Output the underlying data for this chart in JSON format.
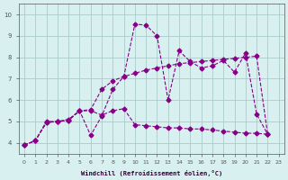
{
  "xlabel": "Windchill (Refroidissement éolien,°C)",
  "background_color": "#d8f0f0",
  "grid_color": "#aacccc",
  "line_color": "#880088",
  "xlim": [
    0,
    23
  ],
  "ylim": [
    3.5,
    10.5
  ],
  "xticks": [
    0,
    1,
    2,
    3,
    4,
    5,
    6,
    7,
    8,
    9,
    10,
    11,
    12,
    13,
    14,
    15,
    16,
    17,
    18,
    19,
    20,
    21,
    22,
    23
  ],
  "yticks": [
    4,
    5,
    6,
    7,
    8,
    9,
    10
  ],
  "series": [
    [
      3.9,
      4.1,
      4.95,
      5.0,
      5.05,
      5.5,
      4.35,
      5.25,
      6.5,
      7.1,
      9.55,
      9.5,
      9.0,
      6.0,
      8.3,
      7.8,
      7.5,
      7.6,
      7.85,
      7.3,
      8.2,
      5.35,
      4.4
    ],
    [
      3.9,
      4.1,
      4.95,
      5.0,
      5.05,
      5.5,
      5.55,
      6.5,
      6.9,
      7.1,
      7.25,
      7.4,
      7.5,
      7.6,
      7.7,
      7.75,
      7.8,
      7.85,
      7.9,
      7.95,
      8.0,
      8.05,
      4.4
    ],
    [
      3.9,
      4.1,
      5.0,
      5.0,
      5.1,
      5.5,
      5.5,
      5.3,
      5.5,
      5.6,
      4.85,
      4.8,
      4.75,
      4.7,
      4.7,
      4.65,
      4.65,
      4.6,
      4.55,
      4.5,
      4.45,
      4.45,
      4.4
    ]
  ]
}
